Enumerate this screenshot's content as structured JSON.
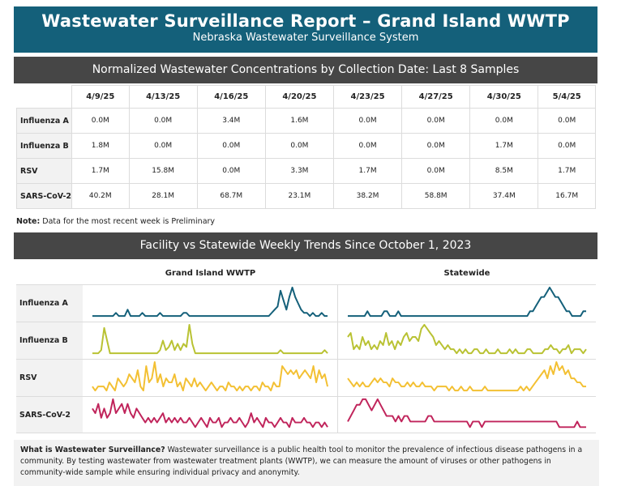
{
  "header": {
    "title": "Wastewater Surveillance Report – Grand Island WWTP",
    "subtitle": "Nebraska Wastewater Surveillance System"
  },
  "concentrations": {
    "section_title": "Normalized Wastewater Concentrations by Collection Date: Last 8 Samples",
    "dates": [
      "4/9/25",
      "4/13/25",
      "4/16/25",
      "4/20/25",
      "4/23/25",
      "4/27/25",
      "4/30/25",
      "5/4/25"
    ],
    "rows": [
      {
        "pathogen": "Influenza A",
        "values": [
          "0.0M",
          "0.0M",
          "3.4M",
          "1.6M",
          "0.0M",
          "0.0M",
          "0.0M",
          "0.0M"
        ]
      },
      {
        "pathogen": "Influenza B",
        "values": [
          "1.8M",
          "0.0M",
          "0.0M",
          "0.0M",
          "0.0M",
          "0.0M",
          "1.7M",
          "0.0M"
        ]
      },
      {
        "pathogen": "RSV",
        "values": [
          "1.7M",
          "15.8M",
          "0.0M",
          "3.3M",
          "1.7M",
          "0.0M",
          "8.5M",
          "1.7M"
        ]
      },
      {
        "pathogen": "SARS-CoV-2",
        "values": [
          "40.2M",
          "28.1M",
          "68.7M",
          "23.1M",
          "38.2M",
          "58.8M",
          "37.4M",
          "16.7M"
        ]
      }
    ]
  },
  "note": {
    "label": "Note:",
    "text": " Data for the most recent week is Preliminary"
  },
  "trends": {
    "section_title": "Facility vs Statewide Weekly Trends Since October 1, 2023",
    "facility_label": "Grand Island WWTP",
    "statewide_label": "Statewide",
    "rows": [
      {
        "pathogen": "Influenza A",
        "color": "#14607a",
        "facility": [
          0,
          0,
          0,
          0,
          0,
          0,
          0,
          0,
          1,
          0,
          0,
          0,
          2,
          0,
          0,
          0,
          0,
          1,
          0,
          0,
          0,
          0,
          0,
          1,
          0,
          0,
          0,
          0,
          0,
          0,
          0,
          1,
          1,
          0,
          0,
          0,
          0,
          0,
          0,
          0,
          0,
          0,
          0,
          0,
          0,
          0,
          0,
          0,
          0,
          0,
          0,
          0,
          0,
          0,
          0,
          0,
          0,
          0,
          0,
          0,
          0,
          1,
          2,
          3,
          8,
          5,
          2,
          6,
          9,
          6,
          4,
          2,
          1,
          1,
          0,
          1,
          0,
          0,
          1,
          0,
          0
        ],
        "statewide": [
          0,
          0,
          0,
          0,
          0,
          0,
          0,
          1,
          0,
          0,
          0,
          0,
          0,
          1,
          1,
          0,
          0,
          0,
          1,
          0,
          0,
          0,
          0,
          0,
          0,
          0,
          0,
          0,
          0,
          0,
          0,
          0,
          0,
          0,
          0,
          0,
          0,
          0,
          0,
          0,
          0,
          0,
          0,
          0,
          0,
          0,
          0,
          0,
          0,
          0,
          0,
          0,
          0,
          0,
          0,
          0,
          0,
          0,
          0,
          0,
          0,
          0,
          0,
          0,
          0,
          1,
          1,
          2,
          3,
          4,
          4,
          5,
          6,
          5,
          4,
          4,
          3,
          2,
          1,
          1,
          0,
          0,
          0,
          0,
          1,
          1
        ]
      },
      {
        "pathogen": "Influenza B",
        "color": "#b9c233",
        "facility": [
          0,
          0,
          0,
          1,
          8,
          4,
          0,
          0,
          0,
          0,
          0,
          0,
          0,
          0,
          0,
          0,
          0,
          0,
          0,
          0,
          0,
          0,
          0,
          1,
          4,
          1,
          2,
          4,
          1,
          3,
          1,
          3,
          2,
          9,
          3,
          0,
          0,
          0,
          0,
          0,
          0,
          0,
          0,
          0,
          0,
          0,
          0,
          0,
          0,
          0,
          0,
          0,
          0,
          0,
          0,
          0,
          0,
          0,
          0,
          0,
          0,
          0,
          0,
          0,
          1,
          0,
          0,
          0,
          0,
          0,
          0,
          0,
          0,
          0,
          0,
          0,
          0,
          0,
          0,
          1,
          0
        ],
        "statewide": [
          4,
          5,
          1,
          2,
          1,
          4,
          2,
          3,
          1,
          2,
          1,
          3,
          2,
          5,
          2,
          3,
          1,
          3,
          2,
          4,
          5,
          3,
          4,
          4,
          3,
          6,
          7,
          6,
          5,
          4,
          2,
          3,
          2,
          1,
          2,
          1,
          1,
          0,
          1,
          0,
          1,
          0,
          0,
          1,
          1,
          0,
          0,
          1,
          0,
          0,
          0,
          1,
          0,
          0,
          0,
          1,
          0,
          1,
          0,
          0,
          0,
          1,
          1,
          0,
          0,
          0,
          0,
          1,
          1,
          2,
          1,
          1,
          0,
          1,
          1,
          2,
          0,
          1,
          1,
          1,
          0,
          1
        ]
      },
      {
        "pathogen": "RSV",
        "color": "#f3c033",
        "facility": [
          1,
          0,
          1,
          1,
          1,
          0,
          2,
          1,
          0,
          3,
          2,
          1,
          2,
          4,
          3,
          2,
          5,
          1,
          0,
          6,
          2,
          3,
          7,
          2,
          4,
          1,
          3,
          2,
          2,
          4,
          1,
          2,
          0,
          3,
          2,
          1,
          3,
          1,
          2,
          1,
          0,
          1,
          2,
          1,
          0,
          1,
          1,
          0,
          2,
          1,
          1,
          0,
          1,
          0,
          1,
          1,
          0,
          1,
          1,
          0,
          2,
          1,
          1,
          0,
          2,
          1,
          1,
          6,
          5,
          4,
          5,
          4,
          5,
          3,
          4,
          5,
          4,
          3,
          6,
          2,
          5,
          3,
          4,
          1
        ],
        "statewide": [
          3,
          2,
          1,
          2,
          1,
          2,
          1,
          1,
          2,
          3,
          2,
          3,
          2,
          2,
          1,
          3,
          2,
          2,
          1,
          1,
          2,
          1,
          2,
          1,
          1,
          2,
          1,
          1,
          1,
          0,
          1,
          1,
          1,
          1,
          0,
          1,
          0,
          0,
          1,
          0,
          0,
          1,
          0,
          0,
          0,
          0,
          1,
          0,
          0,
          0,
          0,
          0,
          0,
          0,
          0,
          0,
          0,
          0,
          1,
          0,
          1,
          0,
          1,
          2,
          3,
          4,
          5,
          3,
          6,
          4,
          7,
          5,
          6,
          4,
          5,
          3,
          3,
          2,
          2,
          1,
          1
        ]
      },
      {
        "pathogen": "SARS-CoV-2",
        "color": "#c0245b",
        "facility": [
          4,
          3,
          5,
          2,
          4,
          2,
          3,
          6,
          3,
          4,
          5,
          3,
          5,
          3,
          2,
          4,
          3,
          2,
          1,
          2,
          1,
          2,
          1,
          2,
          3,
          1,
          2,
          1,
          2,
          1,
          2,
          1,
          1,
          2,
          1,
          0,
          1,
          2,
          1,
          0,
          2,
          1,
          1,
          2,
          0,
          1,
          1,
          2,
          1,
          1,
          2,
          1,
          0,
          1,
          3,
          1,
          2,
          1,
          0,
          2,
          1,
          1,
          0,
          1,
          2,
          1,
          1,
          0,
          2,
          1,
          1,
          1,
          2,
          1,
          1,
          0,
          1,
          1,
          0,
          1,
          0
        ],
        "statewide": [
          1,
          2,
          3,
          4,
          4,
          5,
          5,
          4,
          3,
          4,
          5,
          4,
          3,
          2,
          2,
          2,
          1,
          2,
          1,
          2,
          2,
          1,
          1,
          1,
          1,
          1,
          1,
          2,
          2,
          1,
          1,
          1,
          1,
          1,
          1,
          1,
          1,
          1,
          1,
          1,
          1,
          0,
          1,
          1,
          1,
          0,
          1,
          1,
          1,
          1,
          1,
          1,
          1,
          1,
          1,
          1,
          1,
          1,
          1,
          1,
          1,
          1,
          1,
          1,
          1,
          1,
          1,
          1,
          1,
          1,
          1,
          0,
          0,
          0,
          0,
          0,
          0,
          1,
          0,
          0,
          0
        ]
      }
    ]
  },
  "footer": {
    "label": "What is Wastewater Surveillance?",
    "text": " Wastewater surveillance is a public health tool to monitor the prevalence of infectious disease pathogens in a community. By testing wastewater from wastewater treatment plants (WWTP), we can measure the amount of viruses or other pathogens in community-wide sample while ensuring individual privacy and anonymity."
  }
}
